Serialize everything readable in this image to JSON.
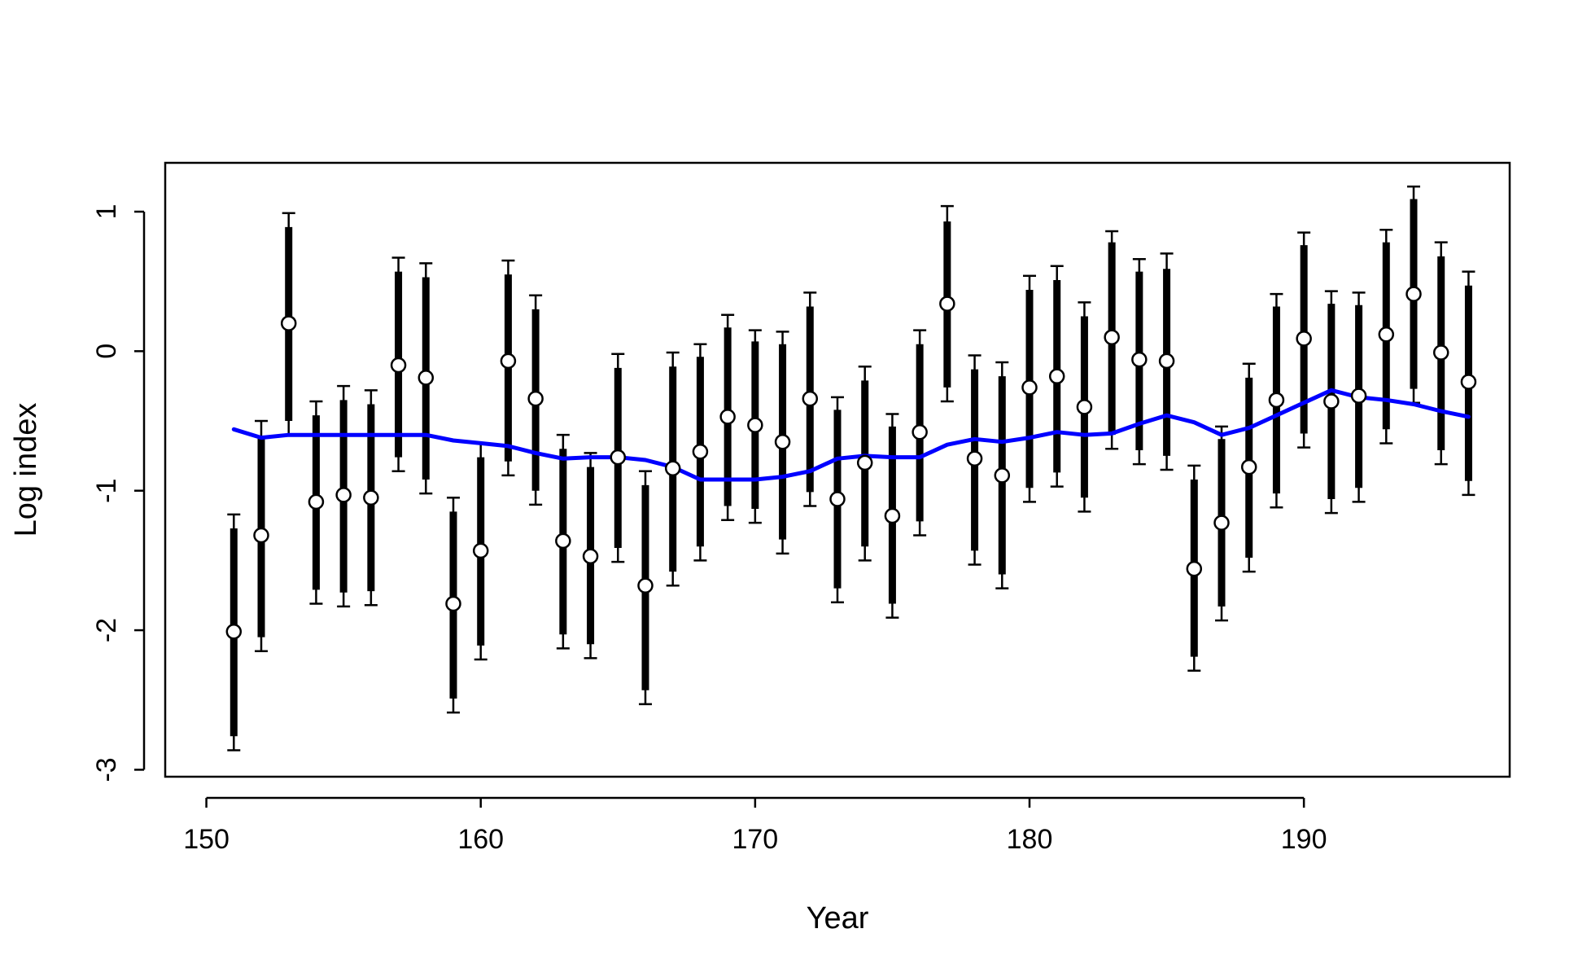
{
  "chart_data": {
    "type": "line",
    "title": "",
    "xlabel": "Year",
    "ylabel": "Log index",
    "xlim": [
      148.5,
      197.5
    ],
    "ylim": [
      -3.05,
      1.35
    ],
    "x_ticks": [
      150,
      160,
      170,
      180,
      190
    ],
    "x_tick_labels": [
      "150",
      "160",
      "170",
      "180",
      "190"
    ],
    "y_ticks": [
      -3,
      -2,
      -1,
      0,
      1
    ],
    "y_tick_labels": [
      "-3",
      "-2",
      "-1",
      "0",
      "1"
    ],
    "grid": false,
    "legend": "none",
    "colors": {
      "points": "#000000",
      "point_fill": "#ffffff",
      "fitted": "#0000ff",
      "axes": "#000000"
    },
    "x": [
      151,
      152,
      153,
      154,
      155,
      156,
      157,
      158,
      159,
      160,
      161,
      162,
      163,
      164,
      165,
      166,
      167,
      168,
      169,
      170,
      171,
      172,
      173,
      174,
      175,
      176,
      177,
      178,
      179,
      180,
      181,
      182,
      183,
      184,
      185,
      186,
      187,
      188,
      189,
      190,
      191,
      192,
      193,
      194,
      195,
      196
    ],
    "series": [
      {
        "role": "observed",
        "marker": "open-circle",
        "y": [
          -2.01,
          -1.32,
          0.2,
          -1.08,
          -1.03,
          -1.05,
          -0.1,
          -0.19,
          -1.81,
          -1.43,
          -0.07,
          -0.34,
          -1.36,
          -1.47,
          -0.76,
          -1.68,
          -0.84,
          -0.72,
          -0.47,
          -0.53,
          -0.65,
          -0.34,
          -1.06,
          -0.8,
          -1.18,
          -0.58,
          0.34,
          -0.77,
          -0.89,
          -0.26,
          -0.18,
          -0.4,
          0.1,
          -0.06,
          -0.07,
          -1.56,
          -1.23,
          -0.83,
          -0.35,
          0.09,
          -0.36,
          -0.32,
          0.12,
          0.41,
          -0.01,
          -0.22
        ],
        "inner_low": [
          -2.76,
          -2.05,
          -0.5,
          -1.71,
          -1.73,
          -1.72,
          -0.76,
          -0.92,
          -2.49,
          -2.11,
          -0.79,
          -1.0,
          -2.03,
          -2.1,
          -1.41,
          -2.43,
          -1.58,
          -1.4,
          -1.11,
          -1.13,
          -1.35,
          -1.01,
          -1.7,
          -1.4,
          -1.81,
          -1.22,
          -0.26,
          -1.43,
          -1.6,
          -0.98,
          -0.87,
          -1.05,
          -0.6,
          -0.71,
          -0.75,
          -2.19,
          -1.83,
          -1.48,
          -1.02,
          -0.59,
          -1.06,
          -0.98,
          -0.56,
          -0.27,
          -0.71,
          -0.93
        ],
        "inner_high": [
          -1.27,
          -0.62,
          0.89,
          -0.46,
          -0.35,
          -0.38,
          0.57,
          0.53,
          -1.15,
          -0.76,
          0.55,
          0.3,
          -0.7,
          -0.83,
          -0.12,
          -0.96,
          -0.11,
          -0.04,
          0.17,
          0.07,
          0.05,
          0.32,
          -0.42,
          -0.21,
          -0.54,
          0.05,
          0.93,
          -0.13,
          -0.18,
          0.44,
          0.51,
          0.25,
          0.78,
          0.57,
          0.59,
          -0.92,
          -0.63,
          -0.19,
          0.32,
          0.76,
          0.34,
          0.33,
          0.78,
          1.09,
          0.68,
          0.47
        ],
        "outer_low": [
          -2.86,
          -2.15,
          -0.6,
          -1.81,
          -1.83,
          -1.82,
          -0.86,
          -1.02,
          -2.59,
          -2.21,
          -0.89,
          -1.1,
          -2.13,
          -2.2,
          -1.51,
          -2.53,
          -1.68,
          -1.5,
          -1.21,
          -1.23,
          -1.45,
          -1.11,
          -1.8,
          -1.5,
          -1.91,
          -1.32,
          -0.36,
          -1.53,
          -1.7,
          -1.08,
          -0.97,
          -1.15,
          -0.7,
          -0.81,
          -0.85,
          -2.29,
          -1.93,
          -1.58,
          -1.12,
          -0.69,
          -1.16,
          -1.08,
          -0.66,
          -0.37,
          -0.81,
          -1.03
        ],
        "outer_high": [
          -1.17,
          -0.5,
          0.99,
          -0.36,
          -0.25,
          -0.28,
          0.67,
          0.63,
          -1.05,
          -0.66,
          0.65,
          0.4,
          -0.6,
          -0.73,
          -0.02,
          -0.86,
          -0.01,
          0.05,
          0.26,
          0.15,
          0.14,
          0.42,
          -0.33,
          -0.11,
          -0.45,
          0.15,
          1.04,
          -0.03,
          -0.08,
          0.54,
          0.61,
          0.35,
          0.86,
          0.66,
          0.7,
          -0.82,
          -0.54,
          -0.09,
          0.41,
          0.85,
          0.43,
          0.42,
          0.87,
          1.18,
          0.78,
          0.57
        ]
      },
      {
        "role": "fitted",
        "y": [
          -0.56,
          -0.62,
          -0.6,
          -0.6,
          -0.6,
          -0.6,
          -0.6,
          -0.6,
          -0.64,
          -0.66,
          -0.68,
          -0.73,
          -0.77,
          -0.76,
          -0.76,
          -0.78,
          -0.83,
          -0.92,
          -0.92,
          -0.92,
          -0.9,
          -0.86,
          -0.77,
          -0.75,
          -0.76,
          -0.76,
          -0.67,
          -0.63,
          -0.65,
          -0.62,
          -0.58,
          -0.6,
          -0.59,
          -0.52,
          -0.46,
          -0.51,
          -0.6,
          -0.55,
          -0.46,
          -0.37,
          -0.28,
          -0.33,
          -0.35,
          -0.38,
          -0.43,
          -0.47
        ]
      }
    ]
  }
}
